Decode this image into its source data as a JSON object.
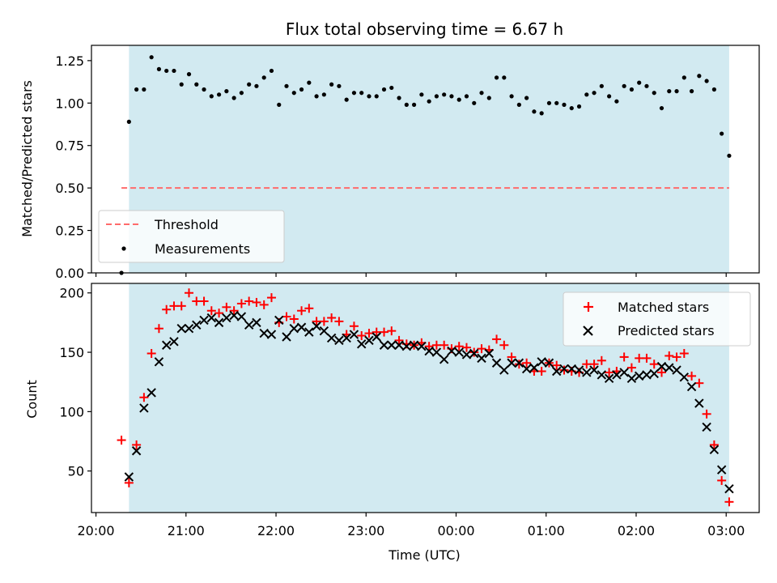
{
  "chart_data": [
    {
      "type": "scatter",
      "title": "Flux total observing time = 6.67 h",
      "xlabel": "",
      "ylabel": "Matched/Predicted stars",
      "xlim": [
        "19:57",
        "03:22"
      ],
      "ylim": [
        0,
        1.34
      ],
      "yticks": [
        0.0,
        0.25,
        0.5,
        0.75,
        1.0,
        1.25
      ],
      "ytick_labels": [
        "0.00",
        "0.25",
        "0.50",
        "0.75",
        "1.00",
        "1.25"
      ],
      "x_ticks": [
        "20:00",
        "21:00",
        "22:00",
        "23:00",
        "00:00",
        "01:00",
        "02:00",
        "03:00"
      ],
      "show_x_tick_labels": false,
      "grid": false,
      "legend_position": "lower left",
      "observing_window": [
        "20:22",
        "03:02"
      ],
      "observing_window_color": "#add8e6",
      "threshold": {
        "name": "Threshold",
        "y": 0.5,
        "x_range": [
          "20:17",
          "03:02"
        ],
        "color": "#ff6b6b",
        "style": "dashed"
      },
      "series": [
        {
          "name": "Measurements",
          "color": "#000000",
          "marker": "dot",
          "points": [
            [
              "20:17",
              0.0
            ],
            [
              "20:22",
              0.89
            ],
            [
              "20:27",
              1.08
            ],
            [
              "20:32",
              1.08
            ],
            [
              "20:37",
              1.27
            ],
            [
              "20:42",
              1.2
            ],
            [
              "20:47",
              1.19
            ],
            [
              "20:52",
              1.19
            ],
            [
              "20:57",
              1.11
            ],
            [
              "21:02",
              1.17
            ],
            [
              "21:07",
              1.11
            ],
            [
              "21:12",
              1.08
            ],
            [
              "21:17",
              1.04
            ],
            [
              "21:22",
              1.05
            ],
            [
              "21:27",
              1.07
            ],
            [
              "21:32",
              1.03
            ],
            [
              "21:37",
              1.06
            ],
            [
              "21:42",
              1.11
            ],
            [
              "21:47",
              1.1
            ],
            [
              "21:52",
              1.15
            ],
            [
              "21:57",
              1.19
            ],
            [
              "22:02",
              0.99
            ],
            [
              "22:07",
              1.1
            ],
            [
              "22:12",
              1.06
            ],
            [
              "22:17",
              1.08
            ],
            [
              "22:22",
              1.12
            ],
            [
              "22:27",
              1.04
            ],
            [
              "22:32",
              1.05
            ],
            [
              "22:37",
              1.11
            ],
            [
              "22:42",
              1.1
            ],
            [
              "22:47",
              1.02
            ],
            [
              "22:52",
              1.06
            ],
            [
              "22:57",
              1.06
            ],
            [
              "23:02",
              1.04
            ],
            [
              "23:07",
              1.04
            ],
            [
              "23:12",
              1.08
            ],
            [
              "23:17",
              1.09
            ],
            [
              "23:22",
              1.03
            ],
            [
              "23:27",
              0.99
            ],
            [
              "23:32",
              0.99
            ],
            [
              "23:37",
              1.05
            ],
            [
              "23:42",
              1.01
            ],
            [
              "23:47",
              1.04
            ],
            [
              "23:52",
              1.05
            ],
            [
              "23:57",
              1.04
            ],
            [
              "00:02",
              1.02
            ],
            [
              "00:07",
              1.04
            ],
            [
              "00:12",
              1.0
            ],
            [
              "00:17",
              1.06
            ],
            [
              "00:22",
              1.03
            ],
            [
              "00:27",
              1.15
            ],
            [
              "00:32",
              1.15
            ],
            [
              "00:37",
              1.04
            ],
            [
              "00:42",
              0.99
            ],
            [
              "00:47",
              1.03
            ],
            [
              "00:52",
              0.95
            ],
            [
              "00:57",
              0.94
            ],
            [
              "01:02",
              1.0
            ],
            [
              "01:07",
              1.0
            ],
            [
              "01:12",
              0.99
            ],
            [
              "01:17",
              0.97
            ],
            [
              "01:22",
              0.98
            ],
            [
              "01:27",
              1.05
            ],
            [
              "01:32",
              1.06
            ],
            [
              "01:37",
              1.1
            ],
            [
              "01:42",
              1.04
            ],
            [
              "01:47",
              1.01
            ],
            [
              "01:52",
              1.1
            ],
            [
              "01:57",
              1.08
            ],
            [
              "02:02",
              1.12
            ],
            [
              "02:07",
              1.1
            ],
            [
              "02:12",
              1.06
            ],
            [
              "02:17",
              0.97
            ],
            [
              "02:22",
              1.07
            ],
            [
              "02:27",
              1.07
            ],
            [
              "02:32",
              1.15
            ],
            [
              "02:37",
              1.07
            ],
            [
              "02:42",
              1.16
            ],
            [
              "02:47",
              1.13
            ],
            [
              "02:52",
              1.08
            ],
            [
              "02:57",
              0.82
            ],
            [
              "03:02",
              0.69
            ]
          ]
        }
      ]
    },
    {
      "type": "scatter",
      "title": "",
      "xlabel": "Time (UTC)",
      "ylabel": "Count",
      "xlim": [
        "19:57",
        "03:22"
      ],
      "ylim": [
        15,
        208
      ],
      "yticks": [
        50,
        100,
        150,
        200
      ],
      "ytick_labels": [
        "50",
        "100",
        "150",
        "200"
      ],
      "x_ticks": [
        "20:00",
        "21:00",
        "22:00",
        "23:00",
        "00:00",
        "01:00",
        "02:00",
        "03:00"
      ],
      "show_x_tick_labels": true,
      "grid": false,
      "legend_position": "top-right",
      "observing_window": [
        "20:22",
        "03:02"
      ],
      "observing_window_color": "#add8e6",
      "series": [
        {
          "name": "Matched stars",
          "color": "#ff0000",
          "marker": "plus",
          "points": [
            [
              "20:17",
              76
            ],
            [
              "20:22",
              40
            ],
            [
              "20:27",
              72
            ],
            [
              "20:32",
              112
            ],
            [
              "20:37",
              149
            ],
            [
              "20:42",
              170
            ],
            [
              "20:47",
              186
            ],
            [
              "20:52",
              189
            ],
            [
              "20:57",
              189
            ],
            [
              "21:02",
              200
            ],
            [
              "21:07",
              193
            ],
            [
              "21:12",
              193
            ],
            [
              "21:17",
              185
            ],
            [
              "21:22",
              183
            ],
            [
              "21:27",
              188
            ],
            [
              "21:32",
              185
            ],
            [
              "21:37",
              191
            ],
            [
              "21:42",
              193
            ],
            [
              "21:47",
              192
            ],
            [
              "21:52",
              190
            ],
            [
              "21:57",
              196
            ],
            [
              "22:02",
              175
            ],
            [
              "22:07",
              180
            ],
            [
              "22:12",
              178
            ],
            [
              "22:17",
              185
            ],
            [
              "22:22",
              187
            ],
            [
              "22:27",
              176
            ],
            [
              "22:32",
              176
            ],
            [
              "22:37",
              179
            ],
            [
              "22:42",
              176
            ],
            [
              "22:47",
              165
            ],
            [
              "22:52",
              172
            ],
            [
              "22:57",
              164
            ],
            [
              "23:02",
              166
            ],
            [
              "23:07",
              167
            ],
            [
              "23:12",
              167
            ],
            [
              "23:17",
              168
            ],
            [
              "23:22",
              160
            ],
            [
              "23:27",
              157
            ],
            [
              "23:32",
              156
            ],
            [
              "23:37",
              158
            ],
            [
              "23:42",
              155
            ],
            [
              "23:47",
              156
            ],
            [
              "23:52",
              156
            ],
            [
              "23:57",
              153
            ],
            [
              "00:02",
              155
            ],
            [
              "00:07",
              154
            ],
            [
              "00:12",
              150
            ],
            [
              "00:17",
              153
            ],
            [
              "00:22",
              152
            ],
            [
              "00:27",
              161
            ],
            [
              "00:32",
              156
            ],
            [
              "00:37",
              146
            ],
            [
              "00:42",
              140
            ],
            [
              "00:47",
              141
            ],
            [
              "00:52",
              134
            ],
            [
              "00:57",
              134
            ],
            [
              "01:02",
              141
            ],
            [
              "01:07",
              139
            ],
            [
              "01:12",
              135
            ],
            [
              "01:17",
              134
            ],
            [
              "01:22",
              133
            ],
            [
              "01:27",
              140
            ],
            [
              "01:32",
              140
            ],
            [
              "01:37",
              143
            ],
            [
              "01:42",
              133
            ],
            [
              "01:47",
              134
            ],
            [
              "01:52",
              146
            ],
            [
              "01:57",
              137
            ],
            [
              "02:02",
              145
            ],
            [
              "02:07",
              145
            ],
            [
              "02:12",
              140
            ],
            [
              "02:17",
              133
            ],
            [
              "02:22",
              147
            ],
            [
              "02:27",
              146
            ],
            [
              "02:32",
              149
            ],
            [
              "02:37",
              130
            ],
            [
              "02:42",
              124
            ],
            [
              "02:47",
              98
            ],
            [
              "02:52",
              72
            ],
            [
              "02:57",
              42
            ],
            [
              "03:02",
              24
            ]
          ]
        },
        {
          "name": "Predicted stars",
          "color": "#000000",
          "marker": "x",
          "points": [
            [
              "20:22",
              45
            ],
            [
              "20:27",
              67
            ],
            [
              "20:32",
              103
            ],
            [
              "20:37",
              116
            ],
            [
              "20:42",
              142
            ],
            [
              "20:47",
              156
            ],
            [
              "20:52",
              159
            ],
            [
              "20:57",
              170
            ],
            [
              "21:02",
              170
            ],
            [
              "21:07",
              173
            ],
            [
              "21:12",
              177
            ],
            [
              "21:17",
              179
            ],
            [
              "21:22",
              175
            ],
            [
              "21:27",
              179
            ],
            [
              "21:32",
              181
            ],
            [
              "21:37",
              180
            ],
            [
              "21:42",
              173
            ],
            [
              "21:47",
              175
            ],
            [
              "21:52",
              166
            ],
            [
              "21:57",
              165
            ],
            [
              "22:02",
              177
            ],
            [
              "22:07",
              163
            ],
            [
              "22:12",
              170
            ],
            [
              "22:17",
              171
            ],
            [
              "22:22",
              167
            ],
            [
              "22:27",
              172
            ],
            [
              "22:32",
              168
            ],
            [
              "22:37",
              162
            ],
            [
              "22:42",
              160
            ],
            [
              "22:47",
              162
            ],
            [
              "22:52",
              165
            ],
            [
              "22:57",
              157
            ],
            [
              "23:02",
              160
            ],
            [
              "23:07",
              163
            ],
            [
              "23:12",
              156
            ],
            [
              "23:17",
              156
            ],
            [
              "23:22",
              156
            ],
            [
              "23:27",
              155
            ],
            [
              "23:32",
              156
            ],
            [
              "23:37",
              155
            ],
            [
              "23:42",
              151
            ],
            [
              "23:47",
              150
            ],
            [
              "23:52",
              144
            ],
            [
              "23:57",
              151
            ],
            [
              "00:02",
              150
            ],
            [
              "00:07",
              148
            ],
            [
              "00:12",
              149
            ],
            [
              "00:17",
              145
            ],
            [
              "00:22",
              149
            ],
            [
              "00:27",
              141
            ],
            [
              "00:32",
              135
            ],
            [
              "00:37",
              141
            ],
            [
              "00:42",
              141
            ],
            [
              "00:47",
              136
            ],
            [
              "00:52",
              137
            ],
            [
              "00:57",
              142
            ],
            [
              "01:02",
              141
            ],
            [
              "01:07",
              134
            ],
            [
              "01:12",
              136
            ],
            [
              "01:17",
              136
            ],
            [
              "01:22",
              135
            ],
            [
              "01:27",
              133
            ],
            [
              "01:32",
              135
            ],
            [
              "01:37",
              131
            ],
            [
              "01:42",
              128
            ],
            [
              "01:47",
              131
            ],
            [
              "01:52",
              133
            ],
            [
              "01:57",
              128
            ],
            [
              "02:02",
              130
            ],
            [
              "02:07",
              131
            ],
            [
              "02:12",
              132
            ],
            [
              "02:17",
              138
            ],
            [
              "02:22",
              137
            ],
            [
              "02:27",
              135
            ],
            [
              "02:32",
              129
            ],
            [
              "02:37",
              121
            ],
            [
              "02:42",
              107
            ],
            [
              "02:47",
              87
            ],
            [
              "02:52",
              68
            ],
            [
              "02:57",
              51
            ],
            [
              "03:02",
              35
            ]
          ]
        }
      ]
    }
  ]
}
